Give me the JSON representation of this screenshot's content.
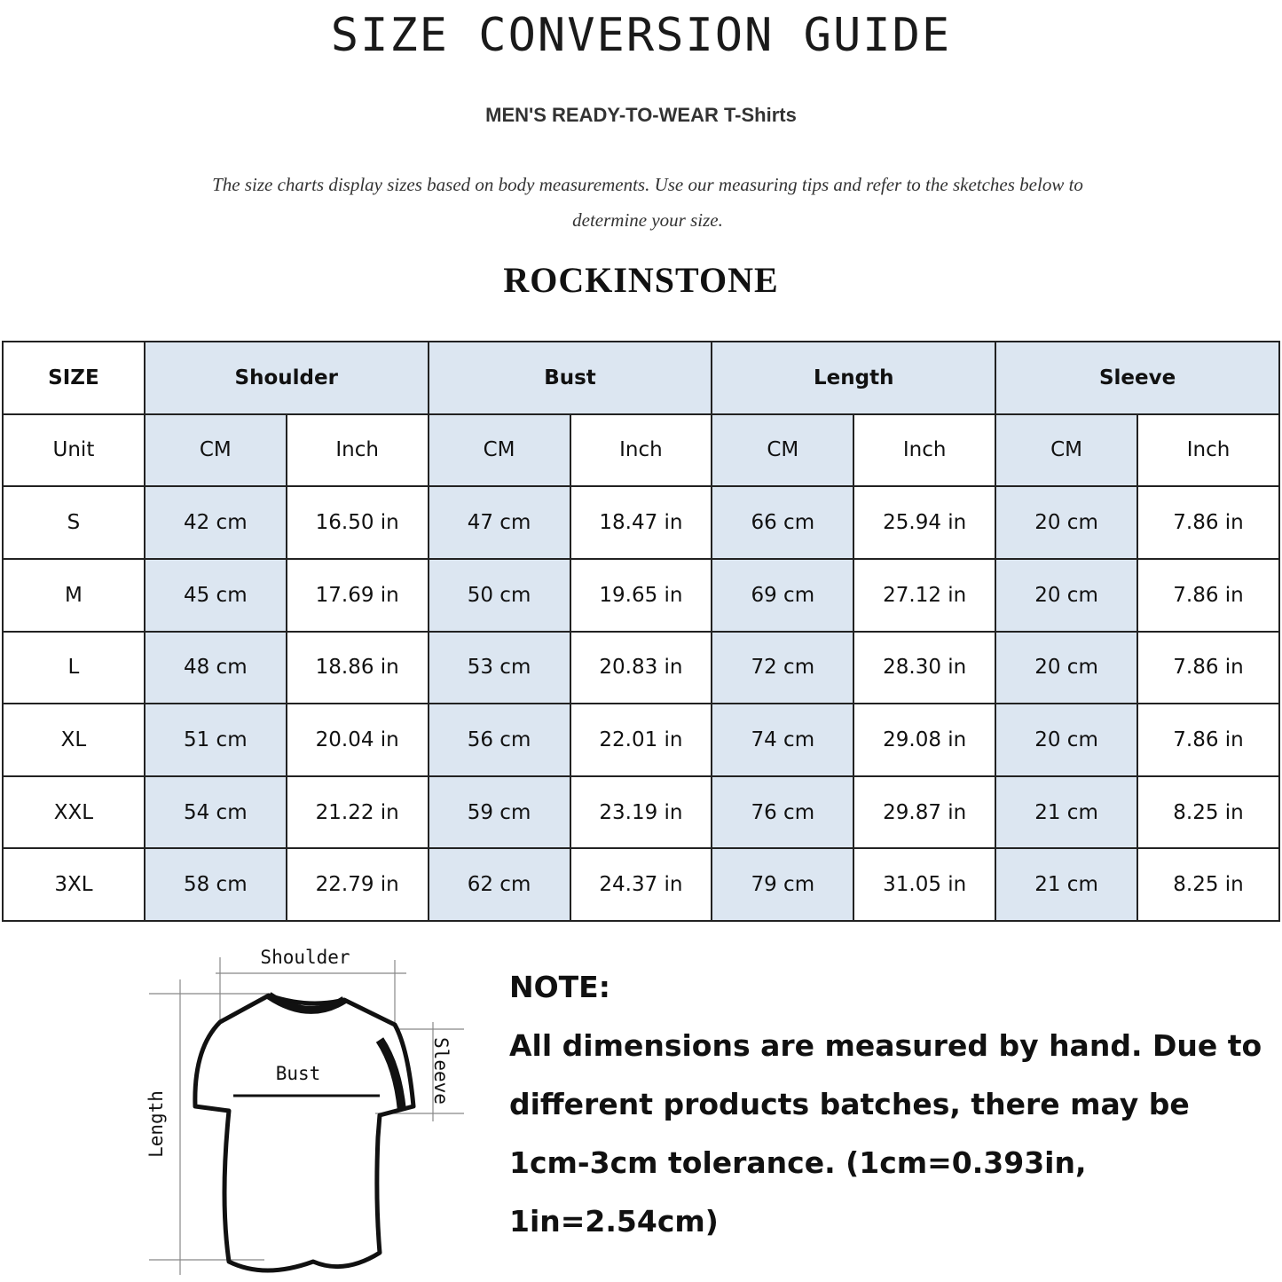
{
  "title": "SIZE CONVERSION GUIDE",
  "subtitle": "MEN'S READY-TO-WEAR T-Shirts",
  "description": "The size charts display sizes based on body measurements. Use our measuring tips and refer to the sketches below to determine your size.",
  "watermark": "ROCK IN STONE",
  "brand": "ROCKINSTONE",
  "colors": {
    "header_fill": "#dce6f1",
    "border": "#222222"
  },
  "table": {
    "size_header": "SIZE",
    "groups": [
      "Shoulder",
      "Bust",
      "Length",
      "Sleeve"
    ],
    "unit_label": "Unit",
    "units": [
      "CM",
      "Inch",
      "CM",
      "Inch",
      "CM",
      "Inch",
      "CM",
      "Inch"
    ],
    "rows": [
      {
        "size": "S",
        "values": [
          "42 cm",
          "16.50 in",
          "47 cm",
          "18.47  in",
          "66 cm",
          "25.94  in",
          "20 cm",
          "7.86  in"
        ]
      },
      {
        "size": "M",
        "values": [
          "45 cm",
          "17.69  in",
          "50 cm",
          "19.65  in",
          "69 cm",
          "27.12  in",
          "20 cm",
          "7.86  in"
        ]
      },
      {
        "size": "L",
        "values": [
          "48 cm",
          "18.86  in",
          "53 cm",
          "20.83  in",
          "72 cm",
          "28.30  in",
          "20 cm",
          "7.86  in"
        ]
      },
      {
        "size": "XL",
        "values": [
          "51 cm",
          "20.04  in",
          "56 cm",
          "22.01  in",
          "74 cm",
          "29.08  in",
          "20 cm",
          "7.86  in"
        ]
      },
      {
        "size": "XXL",
        "values": [
          "54 cm",
          "21.22  in",
          "59 cm",
          "23.19  in",
          "76 cm",
          "29.87  in",
          "21 cm",
          "8.25  in"
        ]
      },
      {
        "size": "3XL",
        "values": [
          "58 cm",
          "22.79  in",
          "62 cm",
          "24.37  in",
          "79 cm",
          "31.05  in",
          "21 cm",
          "8.25  in"
        ]
      }
    ]
  },
  "diagram": {
    "shoulder": "Shoulder",
    "bust": "Bust",
    "length": "Length",
    "sleeve": "Sleeve"
  },
  "note": {
    "heading": "NOTE:",
    "text": "All dimensions are measured by hand. Due to different products batches, there may be 1cm-3cm tolerance. (1cm=0.393in, 1in=2.54cm)"
  }
}
